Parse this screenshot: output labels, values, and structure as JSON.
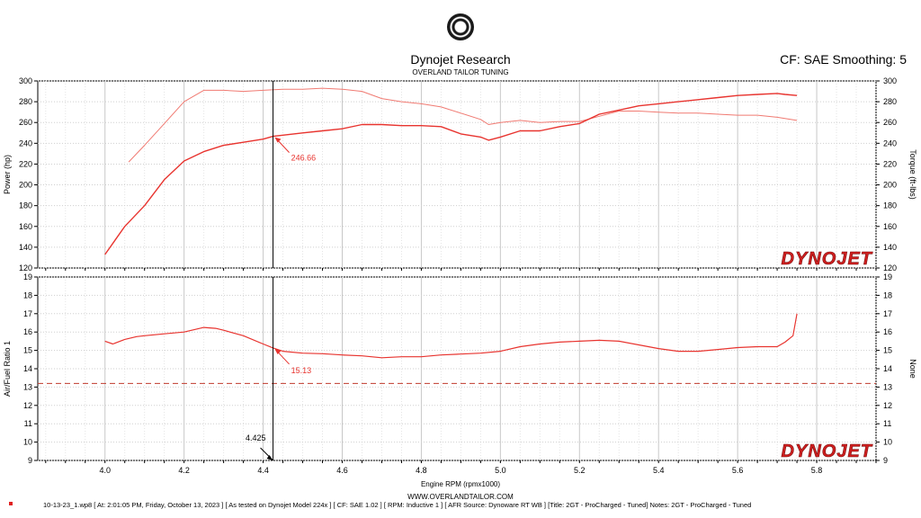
{
  "header": {
    "company": "Dynojet Research",
    "subtitle": "OVERLAND TAILOR TUNING",
    "cf_smoothing": "CF: SAE Smoothing: 5"
  },
  "branding": {
    "watermark": "DYNOJET",
    "url": "WWW.OVERLANDTAILOR.COM",
    "logo_icon": "dynojet-seal-icon"
  },
  "footer": {
    "run_info": "10-13-23_1.wp8 [ At: 2:01:05 PM, Friday, October 13, 2023 ] [ As tested on Dynojet Model 224x ] [ CF: SAE 1.02 ] [ RPM: Inductive 1 ] [ AFR Source: Dynoware RT WB ] [Title: 2GT - ProCharged - Tuned]  Notes: 2GT - ProCharged - Tuned"
  },
  "colors": {
    "trace": "#e8342f",
    "trace_light": "#f07a72",
    "reference": "#c0392b",
    "cursor": "#000000"
  },
  "chart_data": [
    {
      "type": "line",
      "ylabel_left": "Power (hp)",
      "ylabel_right": "Torque (ft-lbs)",
      "ylim": [
        120,
        300
      ],
      "yticks": [
        120,
        140,
        160,
        180,
        200,
        220,
        240,
        260,
        280,
        300
      ],
      "cursor_value": "246.66",
      "series": [
        {
          "role": "power",
          "x": [
            4.0,
            4.05,
            4.1,
            4.15,
            4.2,
            4.25,
            4.3,
            4.35,
            4.4,
            4.425,
            4.5,
            4.55,
            4.6,
            4.65,
            4.7,
            4.75,
            4.8,
            4.85,
            4.9,
            4.95,
            4.97,
            5.0,
            5.05,
            5.1,
            5.15,
            5.2,
            5.25,
            5.3,
            5.35,
            5.4,
            5.45,
            5.5,
            5.55,
            5.6,
            5.65,
            5.7,
            5.72,
            5.75
          ],
          "values": [
            133,
            160,
            180,
            205,
            223,
            232,
            238,
            241,
            244,
            246.66,
            250,
            252,
            254,
            258,
            258,
            257,
            257,
            256,
            249,
            246,
            243,
            246,
            252,
            252,
            256,
            259,
            268,
            272,
            276,
            278,
            280,
            282,
            284,
            286,
            287,
            288,
            287,
            286
          ]
        },
        {
          "role": "torque",
          "x": [
            4.06,
            4.1,
            4.15,
            4.2,
            4.25,
            4.3,
            4.35,
            4.4,
            4.45,
            4.5,
            4.55,
            4.6,
            4.65,
            4.7,
            4.75,
            4.8,
            4.85,
            4.9,
            4.95,
            4.97,
            5.0,
            5.05,
            5.1,
            5.15,
            5.2,
            5.25,
            5.3,
            5.35,
            5.4,
            5.45,
            5.5,
            5.55,
            5.6,
            5.65,
            5.7,
            5.75
          ],
          "values": [
            222,
            238,
            259,
            280,
            291,
            291,
            290,
            291,
            292,
            292,
            293,
            292,
            290,
            283,
            280,
            278,
            275,
            269,
            263,
            258,
            260,
            262,
            260,
            261,
            261,
            266,
            271,
            271,
            270,
            269,
            269,
            268,
            267,
            267,
            265,
            262
          ]
        }
      ]
    },
    {
      "type": "line",
      "xlabel": "Engine RPM (rpmx1000)",
      "ylabel_left": "Air/Fuel Ratio 1",
      "ylabel_right": "None",
      "ylim": [
        9,
        19
      ],
      "yticks": [
        9,
        10,
        11,
        12,
        13,
        14,
        15,
        16,
        17,
        18,
        19
      ],
      "xlim": [
        3.83,
        5.95
      ],
      "xticks": [
        "4.0",
        "4.2",
        "4.4",
        "4.6",
        "4.8",
        "5.0",
        "5.2",
        "5.4",
        "5.6",
        "5.8"
      ],
      "reference_line": 13.2,
      "cursor_x": "4.425",
      "cursor_value": "15.13",
      "series": [
        {
          "role": "afr",
          "x": [
            4.0,
            4.02,
            4.05,
            4.08,
            4.1,
            4.15,
            4.2,
            4.25,
            4.28,
            4.3,
            4.35,
            4.4,
            4.425,
            4.45,
            4.5,
            4.55,
            4.6,
            4.65,
            4.7,
            4.75,
            4.8,
            4.85,
            4.9,
            4.95,
            5.0,
            5.05,
            5.1,
            5.15,
            5.2,
            5.25,
            5.3,
            5.35,
            5.4,
            5.45,
            5.5,
            5.55,
            5.6,
            5.65,
            5.7,
            5.72,
            5.74,
            5.75
          ],
          "values": [
            15.5,
            15.35,
            15.6,
            15.75,
            15.8,
            15.9,
            16.0,
            16.25,
            16.2,
            16.1,
            15.8,
            15.35,
            15.13,
            14.95,
            14.85,
            14.82,
            14.75,
            14.7,
            14.6,
            14.65,
            14.65,
            14.75,
            14.8,
            14.85,
            14.95,
            15.2,
            15.35,
            15.45,
            15.5,
            15.55,
            15.5,
            15.3,
            15.1,
            14.95,
            14.95,
            15.05,
            15.15,
            15.2,
            15.2,
            15.45,
            15.8,
            17.0
          ]
        }
      ]
    }
  ]
}
